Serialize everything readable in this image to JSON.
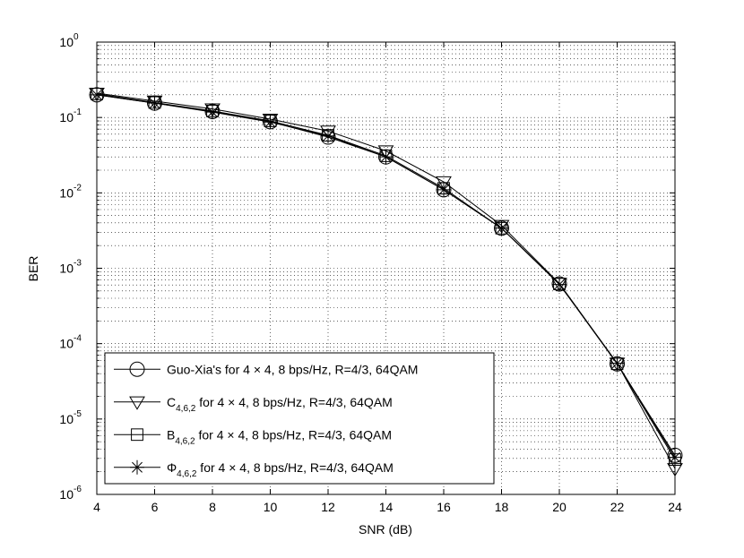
{
  "chart_data": {
    "type": "line",
    "xlabel": "SNR (dB)",
    "ylabel": "BER",
    "xlim": [
      4,
      24
    ],
    "ylim": [
      1e-06,
      1
    ],
    "yscale": "log",
    "grid": true,
    "legend_position": "bottom-left",
    "x_ticks": [
      "4",
      "6",
      "8",
      "10",
      "12",
      "14",
      "16",
      "18",
      "20",
      "22",
      "24"
    ],
    "y_ticks": [
      {
        "base": "10",
        "exp": "0"
      },
      {
        "base": "10",
        "exp": "-1"
      },
      {
        "base": "10",
        "exp": "-2"
      },
      {
        "base": "10",
        "exp": "-3"
      },
      {
        "base": "10",
        "exp": "-4"
      },
      {
        "base": "10",
        "exp": "-5"
      },
      {
        "base": "10",
        "exp": "-6"
      }
    ],
    "x": [
      4,
      6,
      8,
      10,
      12,
      14,
      16,
      18,
      20,
      22,
      24
    ],
    "series": [
      {
        "marker": "circle",
        "legend": {
          "main": "Guo-Xia's for  4 × 4, 8 bps/Hz, R=4/3, 64QAM",
          "sub": ""
        },
        "values": [
          0.2,
          0.155,
          0.12,
          0.088,
          0.055,
          0.03,
          0.011,
          0.0034,
          0.00062,
          5.4e-05,
          3.3e-06
        ]
      },
      {
        "marker": "triangle-down",
        "legend": {
          "main": "C",
          "sub": "4,6,2",
          "rest": " for 4 × 4, 8 bps/Hz, R=4/3, 64QAM"
        },
        "values": [
          0.21,
          0.165,
          0.13,
          0.095,
          0.066,
          0.036,
          0.014,
          0.0037,
          0.00063,
          5.5e-05,
          2.2e-06
        ]
      },
      {
        "marker": "square",
        "legend": {
          "main": "B",
          "sub": "4,6,2",
          "rest": " for 4 × 4, 8 bps/Hz, R=4/3, 64QAM"
        },
        "values": [
          0.205,
          0.158,
          0.122,
          0.09,
          0.058,
          0.031,
          0.0115,
          0.0034,
          0.00062,
          5.4e-05,
          2.9e-06
        ]
      },
      {
        "marker": "asterisk",
        "legend": {
          "main": "Φ",
          "sub": "4,6,2",
          "rest": " for 4 × 4, 8 bps/Hz, R=4/3, 64QAM"
        },
        "values": [
          0.2,
          0.155,
          0.118,
          0.087,
          0.057,
          0.03,
          0.011,
          0.0034,
          0.00061,
          5.5e-05,
          3.1e-06
        ]
      }
    ]
  }
}
